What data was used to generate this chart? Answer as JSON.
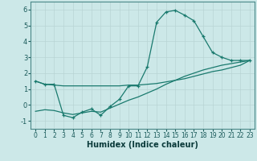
{
  "xlabel": "Humidex (Indice chaleur)",
  "background_color": "#cce8e8",
  "line_color": "#1a7a6e",
  "grid_color": "#b8d4d4",
  "ylim": [
    -1.5,
    6.5
  ],
  "xlim": [
    -0.5,
    23.5
  ],
  "yticks": [
    -1,
    0,
    1,
    2,
    3,
    4,
    5,
    6
  ],
  "xticks": [
    0,
    1,
    2,
    3,
    4,
    5,
    6,
    7,
    8,
    9,
    10,
    11,
    12,
    13,
    14,
    15,
    16,
    17,
    18,
    19,
    20,
    21,
    22,
    23
  ],
  "line1_x": [
    0,
    1,
    2,
    3,
    4,
    5,
    6,
    7,
    8,
    9,
    10,
    11,
    12,
    13,
    14,
    15,
    16,
    17,
    18,
    19,
    20,
    21,
    22,
    23
  ],
  "line1_y": [
    1.5,
    1.3,
    1.3,
    -0.65,
    -0.8,
    -0.45,
    -0.25,
    -0.65,
    -0.1,
    0.35,
    1.2,
    1.2,
    2.4,
    5.2,
    5.85,
    5.95,
    5.65,
    5.3,
    4.3,
    3.3,
    3.0,
    2.8,
    2.8,
    2.8
  ],
  "line2_x": [
    0,
    1,
    2,
    3,
    4,
    5,
    6,
    7,
    8,
    9,
    10,
    11,
    12,
    13,
    14,
    15,
    16,
    17,
    18,
    19,
    20,
    21,
    22,
    23
  ],
  "line2_y": [
    1.5,
    1.3,
    1.25,
    1.2,
    1.2,
    1.2,
    1.2,
    1.2,
    1.2,
    1.2,
    1.25,
    1.25,
    1.3,
    1.35,
    1.45,
    1.55,
    1.65,
    1.8,
    1.95,
    2.1,
    2.2,
    2.35,
    2.5,
    2.8
  ],
  "line3_x": [
    0,
    1,
    2,
    3,
    4,
    5,
    6,
    7,
    8,
    9,
    10,
    11,
    12,
    13,
    14,
    15,
    16,
    17,
    18,
    19,
    20,
    21,
    22,
    23
  ],
  "line3_y": [
    -0.4,
    -0.3,
    -0.35,
    -0.5,
    -0.6,
    -0.5,
    -0.4,
    -0.45,
    -0.2,
    0.05,
    0.3,
    0.5,
    0.75,
    1.0,
    1.3,
    1.55,
    1.8,
    2.0,
    2.2,
    2.35,
    2.5,
    2.6,
    2.7,
    2.8
  ]
}
